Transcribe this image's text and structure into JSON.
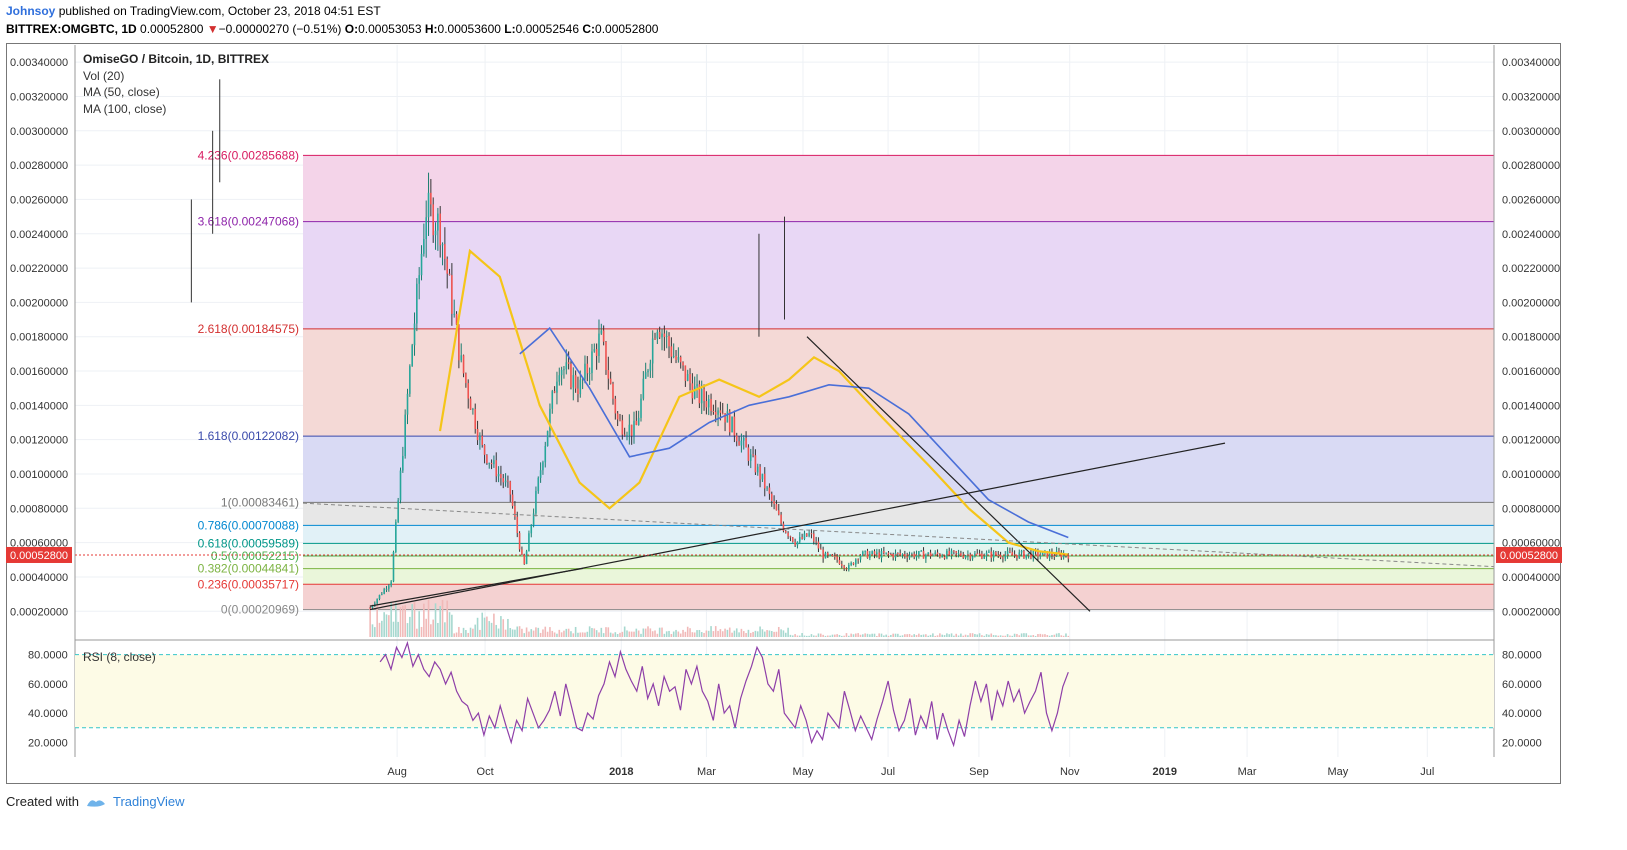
{
  "header": {
    "author": "Johnsoy",
    "published": "published on TradingView.com, October 23, 2018 04:51 EST",
    "symbol": "BITTREX:OMGBTC, 1D",
    "last": "0.00052800",
    "arrow": "▼",
    "change": "−0.00000270 (−0.51%)",
    "o_label": "O:",
    "o_val": "0.00053053",
    "h_label": "H:",
    "h_val": "0.00053600",
    "l_label": "L:",
    "l_val": "0.00052546",
    "c_label": "C:",
    "c_val": "0.00052800"
  },
  "legend": {
    "title": "OmiseGO / Bitcoin, 1D, BITTREX",
    "vol": "Vol (20)",
    "ma50": "MA (50, close)",
    "ma100": "MA (100, close)"
  },
  "rsi_label": "RSI (8, close)",
  "price_badge": "0.00052800",
  "footer": {
    "created": "Created with",
    "brand": "TradingView"
  },
  "colors": {
    "up": "#26a69a",
    "down": "#ef5350",
    "ma50": "#f5c518",
    "ma100": "#4a6fd8",
    "rsi": "#8e3fa8",
    "badge": "#e53935"
  },
  "chart_data": [
    {
      "type": "candlestick",
      "title": "OmiseGO / Bitcoin, 1D, BITTREX",
      "x_tick_labels": [
        "Aug",
        "Oct",
        "2018",
        "Mar",
        "May",
        "Jul",
        "Sep",
        "Nov",
        "2019",
        "Mar",
        "May",
        "Jul"
      ],
      "y_tick_labels": [
        "0.00340000",
        "0.00320000",
        "0.00300000",
        "0.00280000",
        "0.00260000",
        "0.00240000",
        "0.00220000",
        "0.00200000",
        "0.00180000",
        "0.00160000",
        "0.00140000",
        "0.00120000",
        "0.00100000",
        "0.00080000",
        "0.00060000",
        "0.00040000",
        "0.00020000"
      ],
      "ylim": [
        5e-05,
        0.0035
      ],
      "fib_levels": [
        {
          "label": "0(0.00020969)",
          "value": 0.00020969,
          "color": "#888888"
        },
        {
          "label": "0.236(0.00035717)",
          "value": 0.00035717,
          "color": "#e53935"
        },
        {
          "label": "0.382(0.00044841)",
          "value": 0.00044841,
          "color": "#7cb342"
        },
        {
          "label": "0.5(0.00052215)",
          "value": 0.00052215,
          "color": "#4caf50"
        },
        {
          "label": "0.618(0.00059589)",
          "value": 0.00059589,
          "color": "#009688"
        },
        {
          "label": "0.786(0.00070088)",
          "value": 0.00070088,
          "color": "#0288d1"
        },
        {
          "label": "1(0.00083461)",
          "value": 0.00083461,
          "color": "#777777"
        },
        {
          "label": "1.618(0.00122082)",
          "value": 0.00122082,
          "color": "#3949ab"
        },
        {
          "label": "2.618(0.00184575)",
          "value": 0.00184575,
          "color": "#d32f2f"
        },
        {
          "label": "3.618(0.00247068)",
          "value": 0.00247068,
          "color": "#8e24aa"
        },
        {
          "label": "4.236(0.00285688)",
          "value": 0.00285688,
          "color": "#d81b60"
        }
      ],
      "fib_fills": [
        "#f3cfcf",
        "#e9f5d8",
        "#eef7e0",
        "#e2f4ee",
        "#dff0f7",
        "#e6e6e6",
        "#d7d8f3",
        "#f3d7d4",
        "#e7d5f4",
        "#f3d2e8"
      ],
      "price_ma_path": [
        {
          "x": 0.0,
          "close": 0.00022
        },
        {
          "x": 0.03,
          "close": 0.00038
        },
        {
          "x": 0.06,
          "close": 0.00175
        },
        {
          "x": 0.08,
          "close": 0.00255
        },
        {
          "x": 0.1,
          "close": 0.00245
        },
        {
          "x": 0.13,
          "close": 0.00165
        },
        {
          "x": 0.16,
          "close": 0.00115
        },
        {
          "x": 0.2,
          "close": 0.0009
        },
        {
          "x": 0.22,
          "close": 0.00045
        },
        {
          "x": 0.245,
          "close": 0.00105
        },
        {
          "x": 0.27,
          "close": 0.00165
        },
        {
          "x": 0.3,
          "close": 0.0015
        },
        {
          "x": 0.33,
          "close": 0.0018
        },
        {
          "x": 0.355,
          "close": 0.0013
        },
        {
          "x": 0.38,
          "close": 0.00125
        },
        {
          "x": 0.41,
          "close": 0.0019
        },
        {
          "x": 0.44,
          "close": 0.00165
        },
        {
          "x": 0.47,
          "close": 0.00145
        },
        {
          "x": 0.5,
          "close": 0.0014
        },
        {
          "x": 0.53,
          "close": 0.0012
        },
        {
          "x": 0.56,
          "close": 0.00098
        },
        {
          "x": 0.59,
          "close": 0.0007
        },
        {
          "x": 0.61,
          "close": 0.0006
        },
        {
          "x": 0.63,
          "close": 0.00065
        },
        {
          "x": 0.65,
          "close": 0.00052
        },
        {
          "x": 0.67,
          "close": 0.0005
        },
        {
          "x": 0.685,
          "close": 0.00045
        },
        {
          "x": 0.7,
          "close": 0.00053
        }
      ],
      "ma50": [
        {
          "x": 0.07,
          "v": 0.00125
        },
        {
          "x": 0.1,
          "v": 0.0023
        },
        {
          "x": 0.13,
          "v": 0.00215
        },
        {
          "x": 0.17,
          "v": 0.0014
        },
        {
          "x": 0.21,
          "v": 0.00095
        },
        {
          "x": 0.24,
          "v": 0.0008
        },
        {
          "x": 0.27,
          "v": 0.00095
        },
        {
          "x": 0.31,
          "v": 0.00145
        },
        {
          "x": 0.35,
          "v": 0.00155
        },
        {
          "x": 0.39,
          "v": 0.00145
        },
        {
          "x": 0.42,
          "v": 0.00155
        },
        {
          "x": 0.445,
          "v": 0.00168
        },
        {
          "x": 0.47,
          "v": 0.0016
        },
        {
          "x": 0.51,
          "v": 0.00135
        },
        {
          "x": 0.56,
          "v": 0.00105
        },
        {
          "x": 0.6,
          "v": 0.0008
        },
        {
          "x": 0.64,
          "v": 0.0006
        },
        {
          "x": 0.67,
          "v": 0.00055
        },
        {
          "x": 0.7,
          "v": 0.00053
        }
      ],
      "ma100": [
        {
          "x": 0.15,
          "v": 0.0017
        },
        {
          "x": 0.18,
          "v": 0.00185
        },
        {
          "x": 0.22,
          "v": 0.0015
        },
        {
          "x": 0.26,
          "v": 0.0011
        },
        {
          "x": 0.3,
          "v": 0.00115
        },
        {
          "x": 0.34,
          "v": 0.0013
        },
        {
          "x": 0.38,
          "v": 0.0014
        },
        {
          "x": 0.42,
          "v": 0.00145
        },
        {
          "x": 0.46,
          "v": 0.00152
        },
        {
          "x": 0.5,
          "v": 0.0015
        },
        {
          "x": 0.54,
          "v": 0.00135
        },
        {
          "x": 0.58,
          "v": 0.0011
        },
        {
          "x": 0.62,
          "v": 0.00085
        },
        {
          "x": 0.66,
          "v": 0.00072
        },
        {
          "x": 0.7,
          "v": 0.00063
        }
      ]
    },
    {
      "type": "line",
      "title": "RSI (8, close)",
      "y_tick_labels": [
        "80.0000",
        "60.0000",
        "40.0000",
        "20.0000"
      ],
      "ylim": [
        10,
        90
      ],
      "bands": [
        30,
        80
      ],
      "x_start_frac": 0.052,
      "x_end_frac": 0.7,
      "values": [
        75,
        80,
        70,
        85,
        78,
        88,
        72,
        80,
        70,
        65,
        75,
        70,
        60,
        68,
        55,
        48,
        45,
        35,
        40,
        25,
        38,
        30,
        45,
        32,
        20,
        35,
        28,
        50,
        40,
        30,
        35,
        42,
        55,
        38,
        60,
        45,
        30,
        28,
        40,
        36,
        52,
        60,
        75,
        65,
        82,
        70,
        62,
        55,
        72,
        50,
        60,
        45,
        65,
        55,
        58,
        42,
        70,
        60,
        72,
        55,
        48,
        35,
        60,
        40,
        45,
        30,
        50,
        62,
        72,
        85,
        78,
        60,
        55,
        70,
        40,
        35,
        30,
        45,
        35,
        20,
        28,
        22,
        40,
        35,
        30,
        55,
        42,
        28,
        38,
        30,
        22,
        36,
        48,
        62,
        42,
        28,
        35,
        50,
        25,
        38,
        30,
        48,
        22,
        40,
        28,
        18,
        35,
        24,
        45,
        62,
        48,
        60,
        35,
        55,
        45,
        62,
        48,
        56,
        40,
        48,
        55,
        68,
        40,
        28,
        40,
        58,
        68
      ]
    }
  ]
}
